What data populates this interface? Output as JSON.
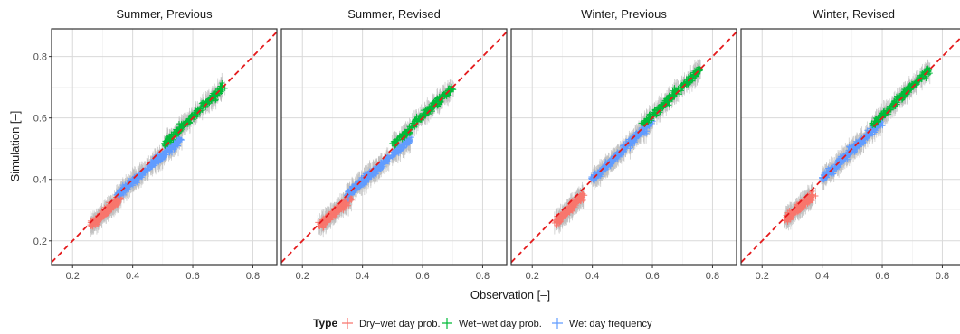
{
  "chart_data": {
    "type": "scatter",
    "xlabel": "Observation [–]",
    "ylabel": "Simulation [–]",
    "xlim": [
      0.13,
      0.88
    ],
    "ylim": [
      0.12,
      0.89
    ],
    "x_ticks": [
      "0.2",
      "0.4",
      "0.6",
      "0.8"
    ],
    "y_ticks": [
      "0.2",
      "0.4",
      "0.6",
      "0.8"
    ],
    "grid": true,
    "legend_title": "Type",
    "legend_position": "bottom",
    "reference_line": "y = x (red dashed)",
    "colors": {
      "dry_wet": "#F8766D",
      "wet_wet": "#00BA38",
      "wet_freq": "#619CFF",
      "reference": "#E41A1C",
      "error_bar": "#BEBEBE"
    },
    "series": [
      {
        "key": "dry_wet",
        "name": "Dry−wet day prob."
      },
      {
        "key": "wet_wet",
        "name": "Wet−wet day prob."
      },
      {
        "key": "wet_freq",
        "name": "Wet day frequency"
      }
    ],
    "panels": [
      {
        "title": "Summer, Previous",
        "clusters": [
          {
            "series": "dry_wet",
            "x": [
              0.26,
              0.36
            ],
            "y": [
              0.25,
              0.34
            ]
          },
          {
            "series": "wet_freq",
            "x": [
              0.35,
              0.56
            ],
            "y": [
              0.35,
              0.53
            ]
          },
          {
            "series": "wet_wet",
            "x": [
              0.5,
              0.7
            ],
            "y": [
              0.51,
              0.7
            ]
          }
        ]
      },
      {
        "title": "Summer, Revised",
        "clusters": [
          {
            "series": "dry_wet",
            "x": [
              0.26,
              0.36
            ],
            "y": [
              0.25,
              0.34
            ]
          },
          {
            "series": "wet_freq",
            "x": [
              0.35,
              0.56
            ],
            "y": [
              0.35,
              0.53
            ]
          },
          {
            "series": "wet_wet",
            "x": [
              0.5,
              0.7
            ],
            "y": [
              0.51,
              0.7
            ]
          }
        ]
      },
      {
        "title": "Winter, Previous",
        "clusters": [
          {
            "series": "dry_wet",
            "x": [
              0.28,
              0.37
            ],
            "y": [
              0.26,
              0.35
            ]
          },
          {
            "series": "wet_freq",
            "x": [
              0.4,
              0.6
            ],
            "y": [
              0.4,
              0.59
            ]
          },
          {
            "series": "wet_wet",
            "x": [
              0.57,
              0.76
            ],
            "y": [
              0.58,
              0.76
            ]
          }
        ]
      },
      {
        "title": "Winter, Revised",
        "clusters": [
          {
            "series": "dry_wet",
            "x": [
              0.28,
              0.37
            ],
            "y": [
              0.27,
              0.35
            ]
          },
          {
            "series": "wet_freq",
            "x": [
              0.4,
              0.6
            ],
            "y": [
              0.4,
              0.59
            ]
          },
          {
            "series": "wet_wet",
            "x": [
              0.57,
              0.76
            ],
            "y": [
              0.58,
              0.76
            ]
          }
        ]
      }
    ]
  }
}
